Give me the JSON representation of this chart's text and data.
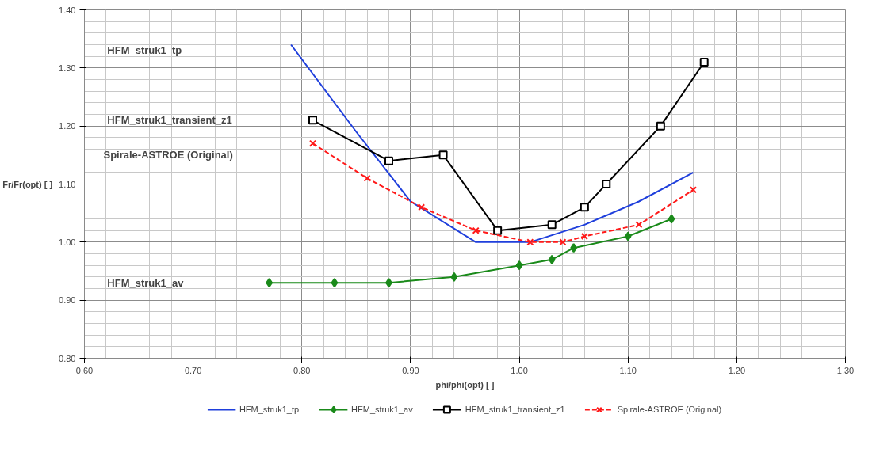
{
  "chart_data": {
    "type": "line",
    "xlabel": "phi/phi(opt) [ ]",
    "ylabel": "Fr/Fr(opt) [ ]",
    "xlim": [
      0.6,
      1.3
    ],
    "ylim": [
      0.8,
      1.4
    ],
    "xticks": [
      {
        "value": 0.6,
        "label": "0.60"
      },
      {
        "value": 0.7,
        "label": "0.70"
      },
      {
        "value": 0.8,
        "label": "0.80"
      },
      {
        "value": 0.9,
        "label": "0.90"
      },
      {
        "value": 1.0,
        "label": "1.00"
      },
      {
        "value": 1.1,
        "label": "1.10"
      },
      {
        "value": 1.2,
        "label": "1.20"
      },
      {
        "value": 1.3,
        "label": "1.30"
      }
    ],
    "yticks": [
      {
        "value": 0.8,
        "label": "0.80"
      },
      {
        "value": 0.9,
        "label": "0.90"
      },
      {
        "value": 1.0,
        "label": "1.00"
      },
      {
        "value": 1.1,
        "label": "1.10"
      },
      {
        "value": 1.2,
        "label": "1.20"
      },
      {
        "value": 1.3,
        "label": "1.30"
      },
      {
        "value": 1.4,
        "label": "1.40"
      }
    ],
    "grid": true,
    "legend": "bottom",
    "series": [
      {
        "name": "HFM_struk1_tp",
        "color": "#1f3fdc",
        "marker": "none",
        "line_style": "solid",
        "x": [
          0.79,
          0.85,
          0.9,
          0.96,
          1.01,
          1.06,
          1.11,
          1.16
        ],
        "values": [
          1.34,
          1.19,
          1.07,
          1.0,
          1.0,
          1.03,
          1.07,
          1.12
        ]
      },
      {
        "name": "HFM_struk1_av",
        "color": "#1a8a1a",
        "marker": "diamond",
        "line_style": "solid",
        "x": [
          0.77,
          0.83,
          0.88,
          0.94,
          1.0,
          1.03,
          1.05,
          1.1,
          1.14
        ],
        "values": [
          0.93,
          0.93,
          0.93,
          0.94,
          0.96,
          0.97,
          0.99,
          1.01,
          1.04
        ]
      },
      {
        "name": "HFM_struk1_transient_z1",
        "color": "#000000",
        "marker": "square",
        "line_style": "solid",
        "x": [
          0.81,
          0.88,
          0.93,
          0.98,
          1.03,
          1.06,
          1.08,
          1.13,
          1.17
        ],
        "values": [
          1.21,
          1.14,
          1.15,
          1.02,
          1.03,
          1.06,
          1.1,
          1.2,
          1.31
        ]
      },
      {
        "name": "Spirale-ASTROE (Original)",
        "color": "#ff1a1a",
        "marker": "cross",
        "line_style": "dashed",
        "x": [
          0.81,
          0.86,
          0.91,
          0.96,
          1.01,
          1.04,
          1.06,
          1.11,
          1.16
        ],
        "values": [
          1.17,
          1.11,
          1.06,
          1.02,
          1.0,
          1.0,
          1.01,
          1.03,
          1.09
        ]
      }
    ],
    "annotations": [
      "HFM_struk1_tp",
      "HFM_struk1_transient_z1",
      "Spirale-ASTROE (Original)",
      "HFM_struk1_av"
    ]
  }
}
